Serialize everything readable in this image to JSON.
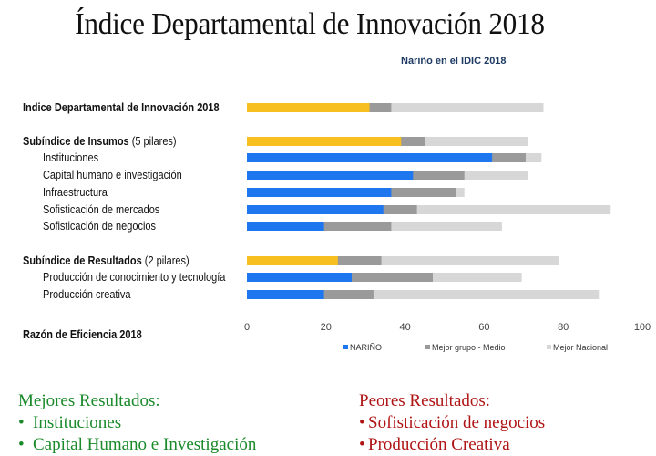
{
  "title": "Índice Departamental de Innovación 2018",
  "chart_data": {
    "type": "bar",
    "subtitle": "Nariño en el IDIC 2018",
    "orientation": "horizontal",
    "xlim": [
      0,
      100
    ],
    "xticks": [
      0,
      20,
      40,
      60,
      80,
      100
    ],
    "grid": false,
    "legend_position": "bottom",
    "series": [
      {
        "name": "NARIÑO",
        "color": "#1f77f0"
      },
      {
        "name": "Mejor grupo - Medio",
        "color": "#9a9a9a"
      },
      {
        "name": "Mejor Nacional",
        "color": "#d7d7d7"
      }
    ],
    "highlight_color": "#f7bf1f",
    "rows": [
      {
        "label": "Indice Departamental de Innovación 2018",
        "suffix": "",
        "bold": true,
        "aggregate": true,
        "nariño": 31.0,
        "group": 36.5,
        "national": 75.0
      },
      {
        "label": "Subíndice de Insumos",
        "suffix": " (5 pilares)",
        "bold": true,
        "aggregate": true,
        "nariño": 39.0,
        "group": 45.0,
        "national": 71.0
      },
      {
        "label": "Instituciones",
        "suffix": "",
        "bold": false,
        "aggregate": false,
        "nariño": 62.0,
        "group": 70.5,
        "national": 74.5
      },
      {
        "label": "Capital humano e investigación",
        "suffix": "",
        "bold": false,
        "aggregate": false,
        "nariño": 42.0,
        "group": 55.0,
        "national": 71.0
      },
      {
        "label": "Infraestructura",
        "suffix": "",
        "bold": false,
        "aggregate": false,
        "nariño": 36.5,
        "group": 53.0,
        "national": 55.0
      },
      {
        "label": "Sofisticación de mercados",
        "suffix": "",
        "bold": false,
        "aggregate": false,
        "nariño": 34.5,
        "group": 43.0,
        "national": 92.0
      },
      {
        "label": "Sofisticación de negocios",
        "suffix": "",
        "bold": false,
        "aggregate": false,
        "nariño": 19.5,
        "group": 36.5,
        "national": 64.5
      },
      {
        "label": "Subíndice de Resultados",
        "suffix": "  (2 pilares)",
        "bold": true,
        "aggregate": true,
        "nariño": 23.0,
        "group": 34.0,
        "national": 79.0
      },
      {
        "label": "Producción de conocimiento y tecnología",
        "suffix": "",
        "bold": false,
        "aggregate": false,
        "nariño": 26.5,
        "group": 47.0,
        "national": 69.5
      },
      {
        "label": "Producción creativa",
        "suffix": "",
        "bold": false,
        "aggregate": false,
        "nariño": 19.5,
        "group": 32.0,
        "national": 89.0
      },
      {
        "label": "Razón de Eficiencia 2018",
        "suffix": "",
        "bold": true,
        "aggregate": true,
        "nariño": null,
        "group": null,
        "national": null
      }
    ]
  },
  "lists": {
    "best": {
      "heading": "Mejores Resultados:",
      "items": [
        "Instituciones",
        "Capital Humano e Investigación"
      ]
    },
    "worst": {
      "heading": "Peores Resultados:",
      "items": [
        "Sofisticación de negocios",
        "Producción Creativa"
      ]
    }
  }
}
